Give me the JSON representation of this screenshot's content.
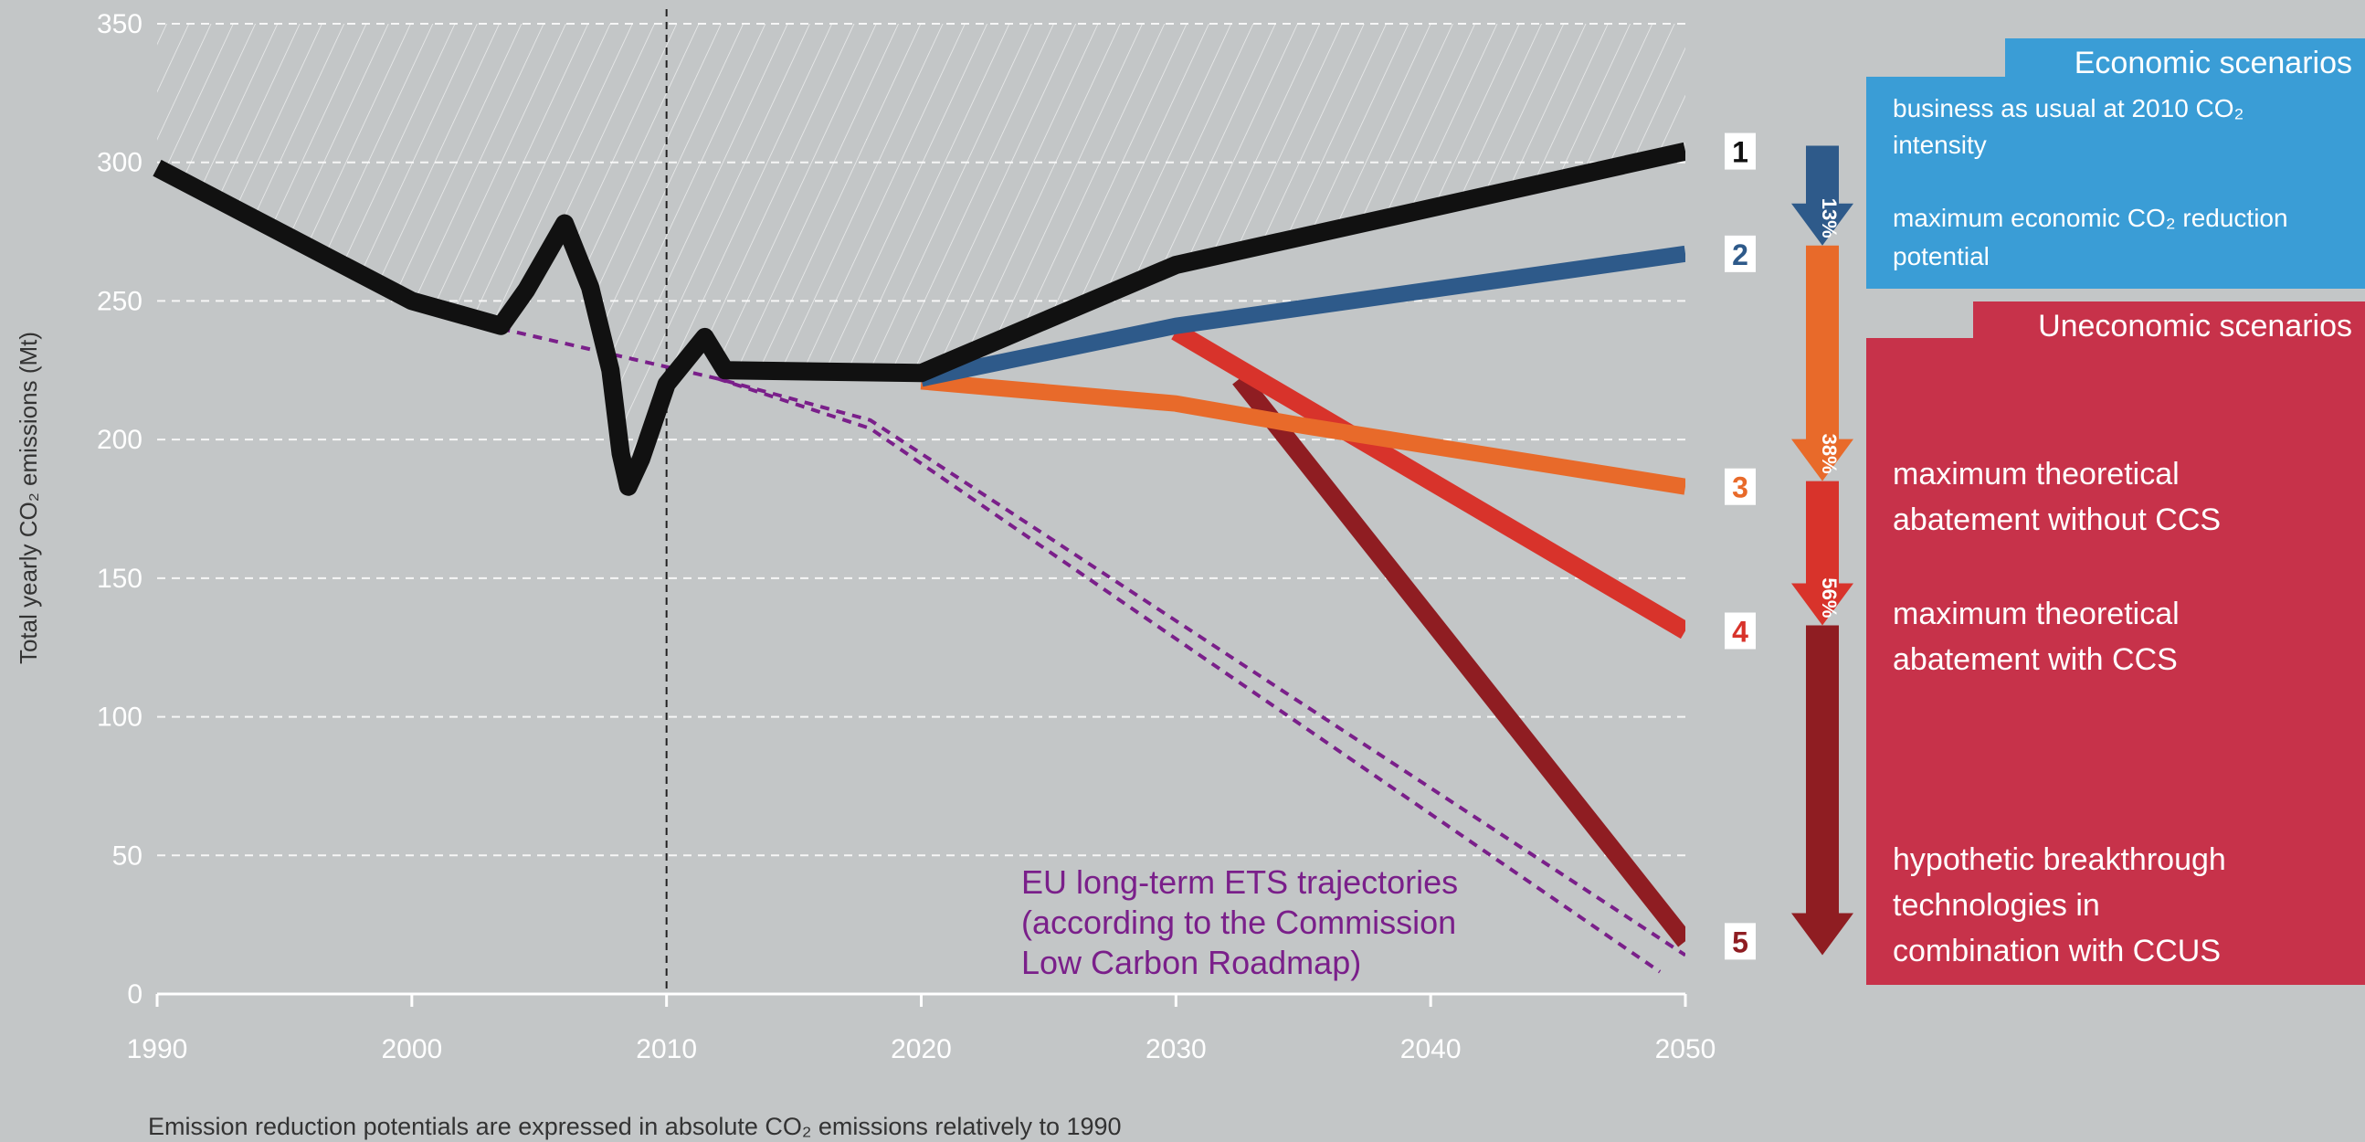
{
  "chart_data": {
    "type": "line",
    "ylabel": "Total yearly CO₂ emissions (Mt)",
    "footnote": "Emission reduction potentials are expressed in absolute CO₂ emissions relatively to 1990",
    "xlim": [
      1990,
      2050
    ],
    "ylim": [
      0,
      350
    ],
    "x_ticks": [
      "1990",
      "2000",
      "2010",
      "2020",
      "2030",
      "2040",
      "2050"
    ],
    "y_ticks": [
      "0",
      "50",
      "100",
      "150",
      "200",
      "250",
      "300",
      "350"
    ],
    "grid": "horizontal-dashed",
    "reference_line_x": 2010,
    "series": [
      {
        "id": "1",
        "color": "#111111",
        "points": [
          [
            1990,
            298
          ],
          [
            2000,
            250
          ],
          [
            2003.5,
            241
          ],
          [
            2004.5,
            254
          ],
          [
            2006,
            278
          ],
          [
            2007,
            255
          ],
          [
            2007.8,
            225
          ],
          [
            2008.2,
            195
          ],
          [
            2008.5,
            183
          ],
          [
            2009,
            193
          ],
          [
            2010,
            220
          ],
          [
            2011.5,
            237
          ],
          [
            2012.3,
            225
          ],
          [
            2020,
            224
          ],
          [
            2030,
            263
          ],
          [
            2050,
            304
          ]
        ]
      },
      {
        "id": "2",
        "color": "#2e5a8a",
        "points": [
          [
            2020,
            222
          ],
          [
            2030,
            241
          ],
          [
            2050,
            267
          ]
        ]
      },
      {
        "id": "3",
        "color": "#e86a2a",
        "points": [
          [
            2020,
            221
          ],
          [
            2030,
            213
          ],
          [
            2035,
            205
          ],
          [
            2050,
            183
          ]
        ]
      },
      {
        "id": "4",
        "color": "#d8332b",
        "points": [
          [
            2030,
            239
          ],
          [
            2050,
            131
          ]
        ]
      },
      {
        "id": "5",
        "color": "#8f1d22",
        "points": [
          [
            2032.5,
            222
          ],
          [
            2050,
            19
          ]
        ]
      }
    ],
    "trajectories": [
      {
        "color": "#7a1f8a",
        "points": [
          [
            2003.5,
            240
          ],
          [
            2012,
            222
          ],
          [
            2018,
            207
          ],
          [
            2050,
            14
          ]
        ]
      },
      {
        "color": "#7a1f8a",
        "points": [
          [
            2012,
            222
          ],
          [
            2018,
            204
          ],
          [
            2049,
            8
          ]
        ]
      }
    ],
    "end_labels": [
      "1",
      "2",
      "3",
      "4",
      "5"
    ],
    "reductions": [
      "13%",
      "38%",
      "56%"
    ],
    "annotation": [
      "EU long-term ETS trajectories",
      "(according to the Commission",
      "Low Carbon Roadmap)"
    ]
  },
  "legend": {
    "economic": {
      "header": "Economic scenarios",
      "color": "#3a9dd6",
      "items": [
        [
          "business as usual at 2010 CO₂",
          "intensity"
        ],
        [
          "maximum economic CO₂ reduction",
          "potential"
        ]
      ]
    },
    "uneconomic": {
      "header": "Uneconomic scenarios",
      "color": "#c7324a",
      "items": [
        [
          "maximum theoretical",
          "abatement without  CCS"
        ],
        [
          "maximum theoretical",
          "abatement with CCS"
        ],
        [
          "hypothetic breakthrough",
          "technologies in",
          "combination with CCUS"
        ]
      ]
    }
  }
}
